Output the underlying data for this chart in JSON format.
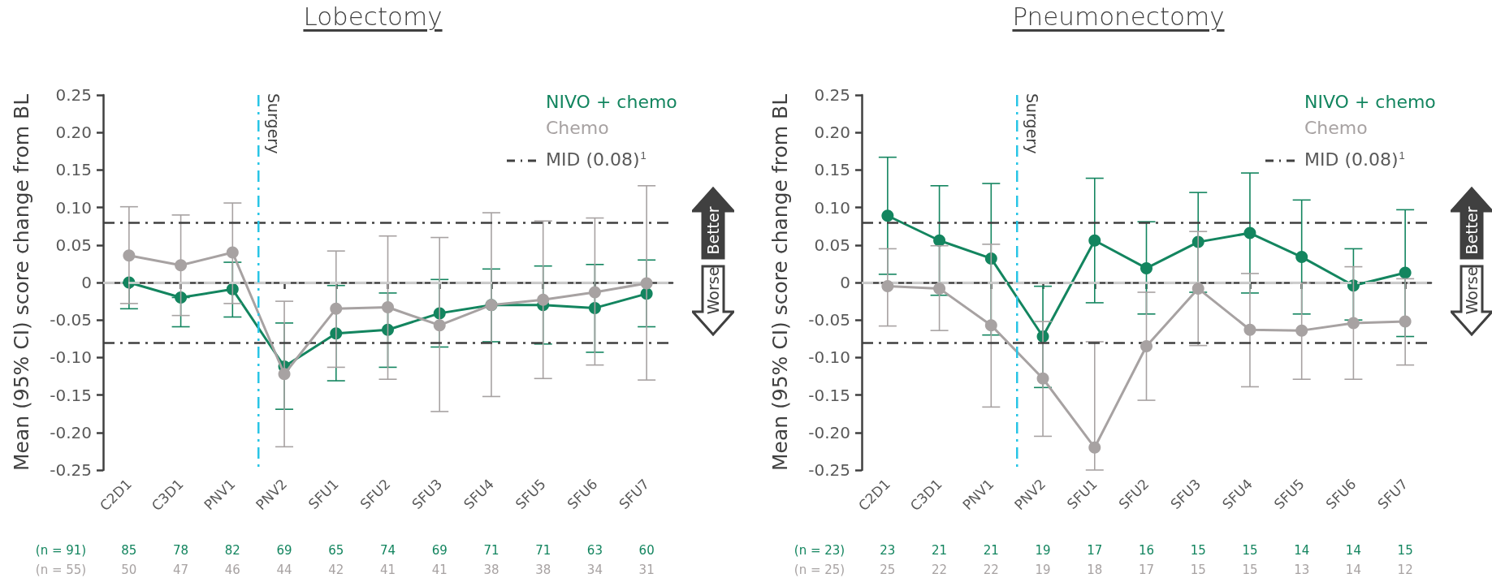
{
  "chart_data": [
    {
      "type": "line",
      "title": "Lobectomy",
      "ylabel": "Mean (95% CI) score change from BL",
      "marker": "circle",
      "legend": "top right",
      "grid": false,
      "categories": [
        "C2D1",
        "C3D1",
        "PNV1",
        "PNV2",
        "SFU1",
        "SFU2",
        "SFU3",
        "SFU4",
        "SFU5",
        "SFU6",
        "SFU7"
      ],
      "ylim": [
        -0.25,
        0.25
      ],
      "yticks": [
        {
          "value": -0.25,
          "label": "-0.25"
        },
        {
          "value": -0.2,
          "label": "-0.20"
        },
        {
          "value": -0.15,
          "label": "-0.15"
        },
        {
          "value": -0.1,
          "label": "-0.10"
        },
        {
          "value": -0.05,
          "label": "-0.05"
        },
        {
          "value": 0,
          "label": "0"
        },
        {
          "value": 0.05,
          "label": "0.05"
        },
        {
          "value": 0.1,
          "label": "0.10"
        },
        {
          "value": 0.15,
          "label": "0.15"
        },
        {
          "value": 0.2,
          "label": "0.20"
        },
        {
          "value": 0.25,
          "label": "0.25"
        }
      ],
      "series": [
        {
          "name": "NIVO + chemo",
          "color": "#13855f",
          "values": [
            0,
            -0.02,
            -0.009,
            -0.112,
            -0.068,
            -0.063,
            -0.041,
            -0.03,
            -0.03,
            -0.034,
            -0.015
          ],
          "errors": [
            [
              -0.035,
              0
            ],
            [
              -0.059,
              -0.02
            ],
            [
              -0.046,
              0.027
            ],
            [
              -0.169,
              -0.054
            ],
            [
              -0.131,
              -0.004
            ],
            [
              -0.113,
              -0.014
            ],
            [
              -0.086,
              0.004
            ],
            [
              -0.079,
              0.018
            ],
            [
              -0.082,
              0.022
            ],
            [
              -0.093,
              0.024
            ],
            [
              -0.059,
              0.03
            ]
          ]
        },
        {
          "name": "Chemo",
          "color": "#a7a2a2",
          "values": [
            0.036,
            0.023,
            0.04,
            -0.122,
            -0.035,
            -0.033,
            -0.057,
            -0.03,
            -0.023,
            -0.013,
            -0.001
          ],
          "errors": [
            [
              -0.028,
              0.101
            ],
            [
              -0.044,
              0.09
            ],
            [
              -0.028,
              0.106
            ],
            [
              -0.219,
              -0.025
            ],
            [
              -0.113,
              0.042
            ],
            [
              -0.129,
              0.062
            ],
            [
              -0.172,
              0.06
            ],
            [
              -0.152,
              0.093
            ],
            [
              -0.128,
              0.082
            ],
            [
              -0.11,
              0.086
            ],
            [
              -0.13,
              0.129
            ]
          ]
        }
      ],
      "ref_lines": [
        {
          "axis": "y",
          "value": 0.078,
          "label": "MID (0.08)$^{1}$",
          "color": "#404040",
          "line_style": "dashed"
        },
        {
          "axis": "y",
          "value": -0.081,
          "color": "#404040",
          "line_style": "dashed"
        },
        {
          "axis": "y",
          "value": 0,
          "color": "#d9d9d9",
          "line_style": "dashed"
        }
      ],
      "annotations": [
        "Better",
        "Worse",
        "Surgery",
        "(n = 91)",
        "85",
        "78",
        "82",
        "69",
        "65",
        "74",
        "69",
        "71",
        "71",
        "63",
        "60",
        "(n = 55)",
        "50",
        "47",
        "46",
        "44",
        "42",
        "41",
        "41",
        "38",
        "38",
        "34",
        "31"
      ]
    },
    {
      "type": "line",
      "title": "Pneumonectomy",
      "ylabel": "Mean (95% CI) score change from BL",
      "marker": "circle",
      "legend": "top right",
      "grid": false,
      "categories": [
        "C2D1",
        "C3D1",
        "PNV1",
        "PNV2",
        "SFU1",
        "SFU2",
        "SFU3",
        "SFU4",
        "SFU5",
        "SFU6",
        "SFU7"
      ],
      "ylim": [
        -0.25,
        0.25
      ],
      "yticks": [
        {
          "value": -0.25,
          "label": "-0.25"
        },
        {
          "value": -0.2,
          "label": "-0.20"
        },
        {
          "value": -0.15,
          "label": "-0.15"
        },
        {
          "value": -0.1,
          "label": "-0.10"
        },
        {
          "value": -0.05,
          "label": "-0.05"
        },
        {
          "value": 0,
          "label": "0"
        },
        {
          "value": 0.05,
          "label": "0.05"
        },
        {
          "value": 0.1,
          "label": "0.10"
        },
        {
          "value": 0.15,
          "label": "0.15"
        },
        {
          "value": 0.2,
          "label": "0.20"
        },
        {
          "value": 0.25,
          "label": "0.25"
        }
      ],
      "series": [
        {
          "name": "NIVO + chemo",
          "color": "#13855f",
          "values": [
            0.089,
            0.056,
            0.032,
            -0.072,
            0.056,
            0.019,
            0.054,
            0.066,
            0.034,
            -0.004,
            0.013
          ],
          "errors": [
            [
              0.011,
              0.167
            ],
            [
              -0.017,
              0.129
            ],
            [
              -0.07,
              0.132
            ],
            [
              -0.14,
              -0.005
            ],
            [
              -0.027,
              0.139
            ],
            [
              -0.042,
              0.081
            ],
            [
              -0.013,
              0.12
            ],
            [
              -0.014,
              0.146
            ],
            [
              -0.042,
              0.11
            ],
            [
              -0.05,
              0.045
            ],
            [
              -0.072,
              0.097
            ]
          ]
        },
        {
          "name": "Chemo",
          "color": "#a7a2a2",
          "values": [
            -0.005,
            -0.008,
            -0.057,
            -0.128,
            -0.22,
            -0.085,
            -0.008,
            -0.063,
            -0.064,
            -0.054,
            -0.052
          ],
          "errors": [
            [
              -0.058,
              0.045
            ],
            [
              -0.064,
              0.049
            ],
            [
              -0.166,
              0.051
            ],
            [
              -0.205,
              -0.052
            ],
            [
              -0.25,
              -0.079
            ],
            [
              -0.157,
              -0.013
            ],
            [
              -0.084,
              0.068
            ],
            [
              -0.139,
              0.012
            ],
            [
              -0.129,
              -0.001
            ],
            [
              -0.129,
              0.021
            ],
            [
              -0.11,
              0.005
            ]
          ]
        }
      ],
      "ref_lines": [
        {
          "axis": "y",
          "value": 0.078,
          "label": "MID (0.08)$^{1}$",
          "color": "#404040",
          "line_style": "dashed"
        },
        {
          "axis": "y",
          "value": -0.081,
          "color": "#404040",
          "line_style": "dashed"
        },
        {
          "axis": "y",
          "value": 0,
          "color": "#d9d9d9",
          "line_style": "dashed"
        }
      ],
      "annotations": [
        "Better",
        "Worse",
        "Surgery",
        "(n = 23)",
        "23",
        "21",
        "21",
        "19",
        "17",
        "16",
        "15",
        "15",
        "14",
        "14",
        "15",
        "(n = 25)",
        "25",
        "22",
        "22",
        "19",
        "18",
        "17",
        "15",
        "15",
        "13",
        "14",
        "12"
      ]
    }
  ]
}
